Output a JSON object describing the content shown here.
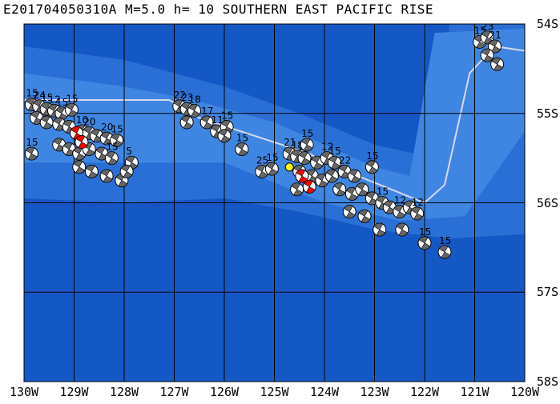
{
  "title": "E201704050310A M=5.0 h= 10 SOUTHERN EAST PACIFIC RISE",
  "map": {
    "lon_range": [
      -130,
      -120
    ],
    "lat_range": [
      -58,
      -54
    ],
    "lat_labels": [
      "54S",
      "55S",
      "56S",
      "57S",
      "58S"
    ],
    "lon_labels": [
      "130W",
      "129W",
      "128W",
      "127W",
      "126W",
      "125W",
      "124W",
      "123W",
      "122W",
      "121W",
      "120W"
    ],
    "colors": {
      "ocean_deep": "#1458c6",
      "ocean_mid": "#2a6fd6",
      "ocean_shallow": "#3f86e2",
      "grid": "#000000",
      "plate_boundary": "#d8d8ee",
      "mechanism_dark": "#666666",
      "mechanism_light": "#ffffff",
      "historical_highlight": "#ff0000",
      "event_marker": "#ffff00"
    },
    "plate_boundary": [
      [
        -130.0,
        -54.85
      ],
      [
        -127.1,
        -54.85
      ],
      [
        -126.5,
        -55.05
      ],
      [
        -124.3,
        -55.45
      ],
      [
        -124.0,
        -55.55
      ],
      [
        -122.0,
        -56.0
      ],
      [
        -121.6,
        -55.8
      ],
      [
        -121.1,
        -54.55
      ],
      [
        -120.6,
        -54.25
      ],
      [
        -120.0,
        -54.3
      ]
    ],
    "focal_mechanisms": [
      {
        "lon": -129.85,
        "lat": -54.9,
        "label": "15"
      },
      {
        "lon": -129.7,
        "lat": -54.92,
        "label": "24"
      },
      {
        "lon": -129.55,
        "lat": -54.95,
        "label": "15"
      },
      {
        "lon": -129.4,
        "lat": -54.97,
        "label": "12"
      },
      {
        "lon": -129.25,
        "lat": -55.0,
        "label": "15"
      },
      {
        "lon": -129.05,
        "lat": -54.96,
        "label": "15"
      },
      {
        "lon": -129.75,
        "lat": -55.05,
        "label": ""
      },
      {
        "lon": -129.55,
        "lat": -55.1,
        "label": ""
      },
      {
        "lon": -129.3,
        "lat": -55.12,
        "label": ""
      },
      {
        "lon": -129.1,
        "lat": -55.15,
        "label": ""
      },
      {
        "lon": -128.85,
        "lat": -55.2,
        "label": "10"
      },
      {
        "lon": -128.7,
        "lat": -55.22,
        "label": "20"
      },
      {
        "lon": -128.55,
        "lat": -55.25,
        "label": ""
      },
      {
        "lon": -128.35,
        "lat": -55.28,
        "label": "20"
      },
      {
        "lon": -128.15,
        "lat": -55.3,
        "label": "15"
      },
      {
        "lon": -129.3,
        "lat": -55.35,
        "label": ""
      },
      {
        "lon": -129.1,
        "lat": -55.4,
        "label": ""
      },
      {
        "lon": -128.9,
        "lat": -55.45,
        "label": ""
      },
      {
        "lon": -128.7,
        "lat": -55.4,
        "label": ""
      },
      {
        "lon": -128.45,
        "lat": -55.45,
        "label": ""
      },
      {
        "lon": -128.25,
        "lat": -55.5,
        "label": "15"
      },
      {
        "lon": -127.85,
        "lat": -55.55,
        "label": "5"
      },
      {
        "lon": -129.85,
        "lat": -55.45,
        "label": "15"
      },
      {
        "lon": -128.9,
        "lat": -55.6,
        "label": ""
      },
      {
        "lon": -128.65,
        "lat": -55.65,
        "label": ""
      },
      {
        "lon": -128.35,
        "lat": -55.7,
        "label": ""
      },
      {
        "lon": -128.05,
        "lat": -55.75,
        "label": ""
      },
      {
        "lon": -127.95,
        "lat": -55.65,
        "label": ""
      },
      {
        "lon": -126.9,
        "lat": -54.92,
        "label": "22"
      },
      {
        "lon": -126.75,
        "lat": -54.95,
        "label": "23"
      },
      {
        "lon": -126.6,
        "lat": -54.97,
        "label": "18"
      },
      {
        "lon": -126.75,
        "lat": -55.1,
        "label": ""
      },
      {
        "lon": -126.35,
        "lat": -55.1,
        "label": "17"
      },
      {
        "lon": -126.15,
        "lat": -55.2,
        "label": "11"
      },
      {
        "lon": -125.95,
        "lat": -55.15,
        "label": "15"
      },
      {
        "lon": -126.0,
        "lat": -55.25,
        "label": ""
      },
      {
        "lon": -125.65,
        "lat": -55.4,
        "label": "15"
      },
      {
        "lon": -125.25,
        "lat": -55.65,
        "label": "25"
      },
      {
        "lon": -125.05,
        "lat": -55.62,
        "label": "15"
      },
      {
        "lon": -124.7,
        "lat": -55.45,
        "label": "21"
      },
      {
        "lon": -124.55,
        "lat": -55.48,
        "label": "18"
      },
      {
        "lon": -124.4,
        "lat": -55.5,
        "label": "20"
      },
      {
        "lon": -124.35,
        "lat": -55.35,
        "label": "15"
      },
      {
        "lon": -124.15,
        "lat": -55.55,
        "label": ""
      },
      {
        "lon": -123.95,
        "lat": -55.5,
        "label": "12"
      },
      {
        "lon": -123.8,
        "lat": -55.55,
        "label": "15"
      },
      {
        "lon": -124.5,
        "lat": -55.65,
        "label": ""
      },
      {
        "lon": -124.25,
        "lat": -55.7,
        "label": ""
      },
      {
        "lon": -124.05,
        "lat": -55.75,
        "label": ""
      },
      {
        "lon": -123.85,
        "lat": -55.7,
        "label": ""
      },
      {
        "lon": -123.6,
        "lat": -55.65,
        "label": "22"
      },
      {
        "lon": -123.4,
        "lat": -55.7,
        "label": ""
      },
      {
        "lon": -124.55,
        "lat": -55.85,
        "label": ""
      },
      {
        "lon": -123.7,
        "lat": -55.85,
        "label": ""
      },
      {
        "lon": -123.45,
        "lat": -55.9,
        "label": ""
      },
      {
        "lon": -123.25,
        "lat": -55.85,
        "label": ""
      },
      {
        "lon": -123.05,
        "lat": -55.6,
        "label": "15"
      },
      {
        "lon": -123.05,
        "lat": -55.95,
        "label": ""
      },
      {
        "lon": -122.85,
        "lat": -56.0,
        "label": "15"
      },
      {
        "lon": -122.7,
        "lat": -56.05,
        "label": ""
      },
      {
        "lon": -122.5,
        "lat": -56.1,
        "label": "12"
      },
      {
        "lon": -122.3,
        "lat": -56.05,
        "label": ""
      },
      {
        "lon": -122.15,
        "lat": -56.12,
        "label": "12"
      },
      {
        "lon": -123.5,
        "lat": -56.1,
        "label": ""
      },
      {
        "lon": -123.2,
        "lat": -56.15,
        "label": ""
      },
      {
        "lon": -122.9,
        "lat": -56.3,
        "label": ""
      },
      {
        "lon": -122.45,
        "lat": -56.3,
        "label": ""
      },
      {
        "lon": -122.0,
        "lat": -56.45,
        "label": "15"
      },
      {
        "lon": -121.6,
        "lat": -56.55,
        "label": "15"
      },
      {
        "lon": -120.9,
        "lat": -54.2,
        "label": "15"
      },
      {
        "lon": -120.75,
        "lat": -54.15,
        "label": "23"
      },
      {
        "lon": -120.6,
        "lat": -54.25,
        "label": "21"
      },
      {
        "lon": -120.75,
        "lat": -54.35,
        "label": ""
      },
      {
        "lon": -120.55,
        "lat": -54.45,
        "label": ""
      }
    ],
    "red_mechanisms": [
      {
        "lon": -128.95,
        "lat": -55.22
      },
      {
        "lon": -128.85,
        "lat": -55.32
      },
      {
        "lon": -124.45,
        "lat": -55.7
      },
      {
        "lon": -124.3,
        "lat": -55.82
      }
    ],
    "event": {
      "lon": -124.7,
      "lat": -55.6
    }
  }
}
